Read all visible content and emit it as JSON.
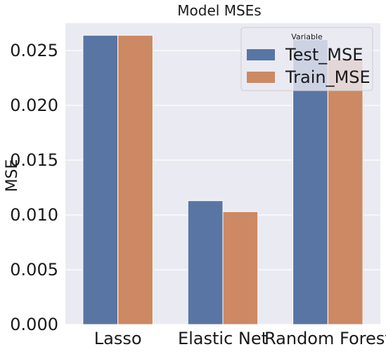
{
  "chart_data": {
    "type": "bar",
    "title": "Model MSEs",
    "xlabel": "",
    "ylabel": "MSE",
    "categories": [
      "Lasso",
      "Elastic Net",
      "Random Forest"
    ],
    "series": [
      {
        "name": "Test_MSE",
        "values": [
          0.0264,
          0.0113,
          0.026
        ],
        "color": "#5975a4"
      },
      {
        "name": "Train_MSE",
        "values": [
          0.0264,
          0.0103,
          0.0242
        ],
        "color": "#cc8963"
      }
    ],
    "ylim": [
      0,
      0.0275
    ],
    "yticks": [
      "0.000",
      "0.005",
      "0.010",
      "0.015",
      "0.020",
      "0.025"
    ],
    "ytick_values": [
      0,
      0.005,
      0.01,
      0.015,
      0.02,
      0.025
    ],
    "grid": true,
    "legend": {
      "title": "Variable",
      "placement": "top-right"
    },
    "colors": {
      "plot_background": "#eaeaf2",
      "grid": "#ffffff"
    }
  }
}
